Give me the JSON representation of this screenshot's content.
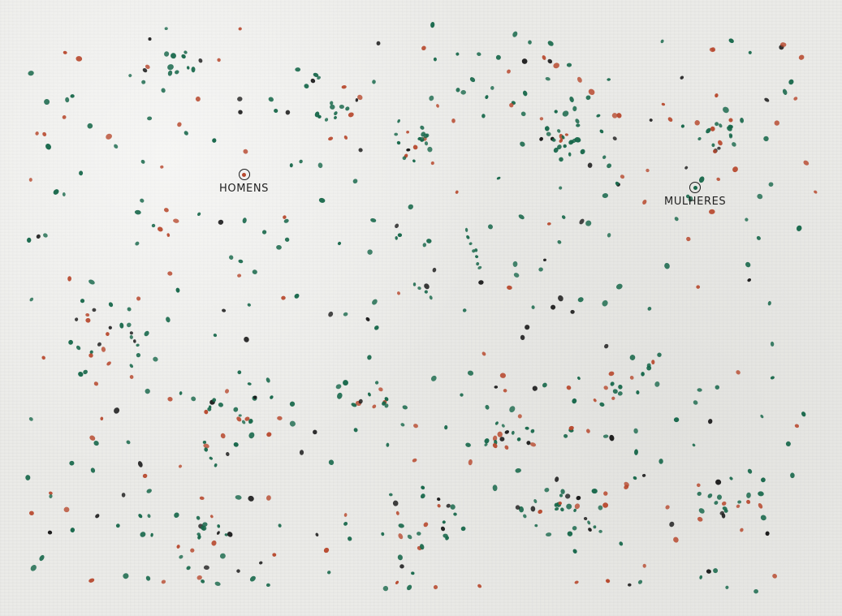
{
  "artwork": {
    "labels": {
      "homens": "HOMENS",
      "mulheres": "MULHERES"
    },
    "colors": {
      "paper": "#ebebe8",
      "green_dot": "#17674a",
      "red_dot": "#b7482d",
      "black_dot": "#1a1a1a",
      "ink": "#1f1f1f"
    },
    "icons": {
      "homens_marker": "circle-target-icon",
      "mulheres_marker": "circle-target-icon"
    }
  }
}
